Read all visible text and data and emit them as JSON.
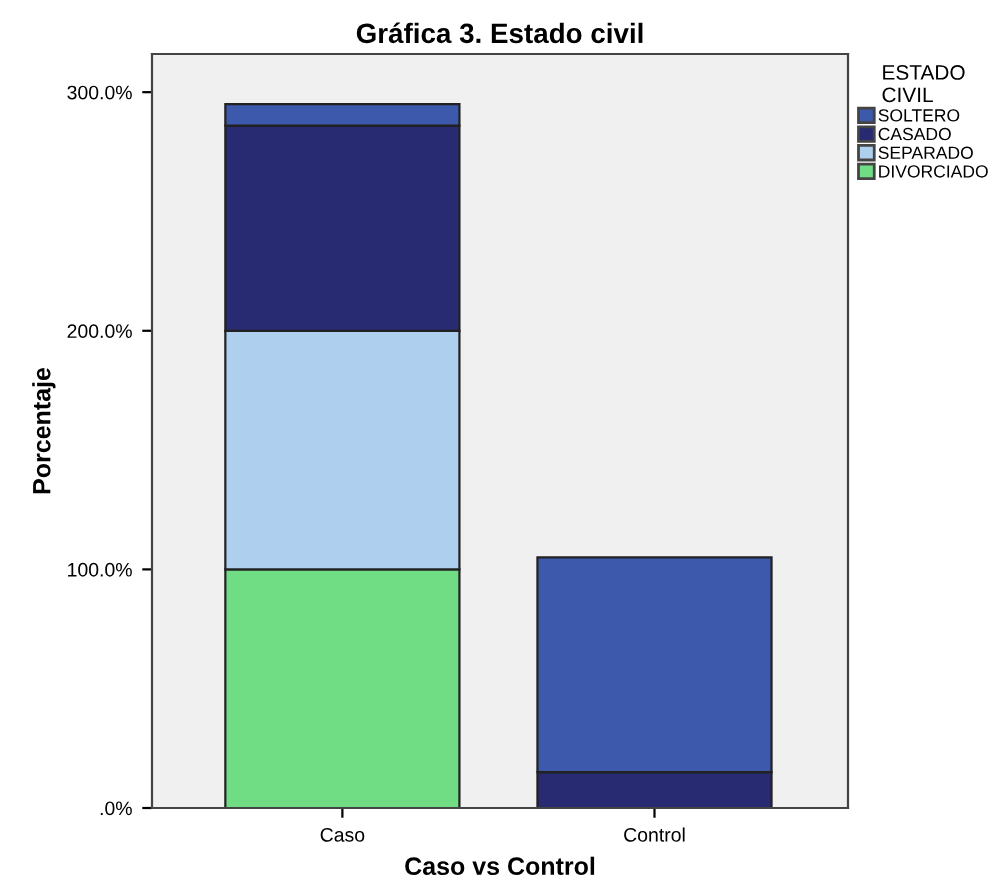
{
  "chart_data": {
    "type": "bar",
    "stacked": true,
    "title": "Gráfica 3. Estado civil",
    "xlabel": "Caso vs Control",
    "ylabel": "Porcentaje",
    "legend_title": "ESTADO\nCIVIL",
    "legend": "right",
    "categories": [
      "Caso",
      "Control"
    ],
    "series": [
      {
        "name": "DIVORCIADO",
        "color": "#70dc84",
        "values": [
          100,
          0
        ]
      },
      {
        "name": "SEPARADO",
        "color": "#aed0ee",
        "values": [
          100,
          0
        ]
      },
      {
        "name": "CASADO",
        "color": "#282a72",
        "values": [
          86,
          15
        ]
      },
      {
        "name": "SOLTERO",
        "color": "#3d59ab",
        "values": [
          9,
          90
        ]
      }
    ],
    "ylim": [
      0,
      316
    ],
    "yticks": [
      {
        "value": 0,
        "label": ".0%"
      },
      {
        "value": 100,
        "label": "100.0%"
      },
      {
        "value": 200,
        "label": "200.0%"
      },
      {
        "value": 300,
        "label": "300.0%"
      }
    ],
    "grid": false
  }
}
